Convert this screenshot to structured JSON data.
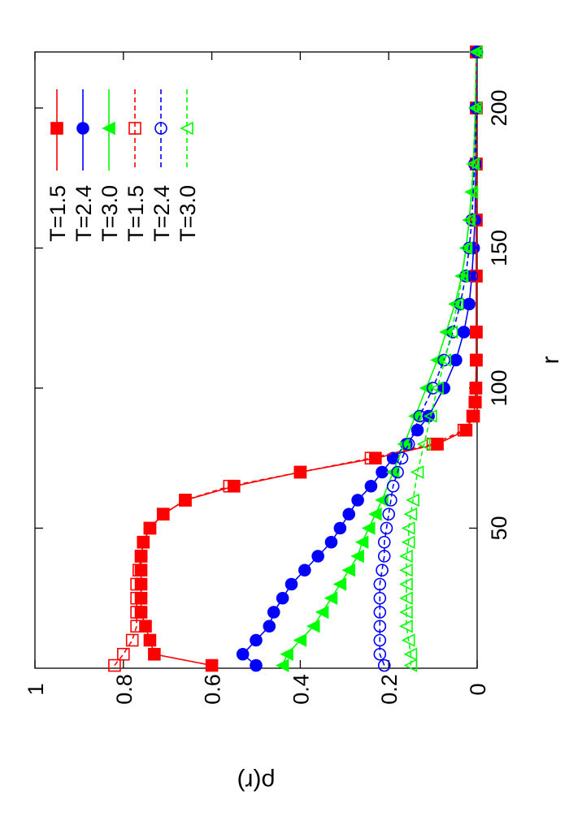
{
  "chart_data": {
    "type": "line",
    "xlabel": "r",
    "ylabel": "ρ(r)",
    "xlim": [
      0,
      220
    ],
    "ylim": [
      0,
      1
    ],
    "x_ticks": [
      50,
      100,
      150,
      200
    ],
    "y_ticks": [
      0,
      0.2,
      0.4,
      0.6,
      0.8,
      1
    ],
    "rotated": "90deg clockwise",
    "legend_position": "top-right",
    "series": [
      {
        "name": "T=1.5",
        "color": "#ff0000",
        "marker": "filled-square",
        "dash": "solid",
        "x": [
          1,
          5,
          10,
          15,
          20,
          25,
          30,
          35,
          40,
          45,
          50,
          55,
          60,
          65,
          70,
          75,
          80,
          85,
          90,
          95,
          100,
          110,
          120,
          140,
          160,
          180,
          200,
          220
        ],
        "y": [
          0.6,
          0.73,
          0.74,
          0.75,
          0.76,
          0.76,
          0.76,
          0.76,
          0.76,
          0.755,
          0.74,
          0.71,
          0.66,
          0.55,
          0.4,
          0.23,
          0.09,
          0.025,
          0.008,
          0.004,
          0.003,
          0.002,
          0.002,
          0.002,
          0.002,
          0.002,
          0.002,
          0.002
        ]
      },
      {
        "name": "T=2.4",
        "color": "#0000ff",
        "marker": "filled-circle",
        "dash": "solid",
        "x": [
          1,
          5,
          10,
          15,
          20,
          25,
          30,
          35,
          40,
          45,
          50,
          55,
          60,
          65,
          70,
          75,
          80,
          85,
          90,
          100,
          110,
          120,
          130,
          140,
          150,
          160,
          180,
          200,
          220
        ],
        "y": [
          0.5,
          0.53,
          0.5,
          0.47,
          0.46,
          0.44,
          0.42,
          0.39,
          0.36,
          0.33,
          0.31,
          0.29,
          0.27,
          0.24,
          0.215,
          0.19,
          0.16,
          0.135,
          0.11,
          0.075,
          0.048,
          0.03,
          0.018,
          0.012,
          0.008,
          0.005,
          0.003,
          0.002,
          0.001
        ]
      },
      {
        "name": "T=3.0",
        "color": "#00ff00",
        "marker": "filled-triangle",
        "dash": "solid",
        "x": [
          1,
          5,
          10,
          15,
          20,
          25,
          30,
          35,
          40,
          45,
          50,
          55,
          60,
          70,
          80,
          90,
          100,
          110,
          120,
          130,
          140,
          150,
          160,
          170,
          180,
          200,
          220
        ],
        "y": [
          0.44,
          0.43,
          0.4,
          0.37,
          0.35,
          0.33,
          0.31,
          0.29,
          0.27,
          0.26,
          0.245,
          0.23,
          0.215,
          0.19,
          0.165,
          0.14,
          0.115,
          0.09,
          0.07,
          0.05,
          0.035,
          0.025,
          0.018,
          0.012,
          0.008,
          0.004,
          0.002
        ]
      },
      {
        "name": "T=1.5",
        "color": "#ff0000",
        "marker": "open-square",
        "dash": "dashed",
        "x": [
          1,
          5,
          10,
          15,
          20,
          25,
          30,
          35,
          40,
          45,
          50,
          55,
          60,
          65,
          70,
          75,
          80,
          85,
          90,
          95,
          100,
          110,
          120,
          140,
          160,
          180,
          200,
          220
        ],
        "y": [
          0.82,
          0.8,
          0.78,
          0.77,
          0.77,
          0.77,
          0.77,
          0.765,
          0.76,
          0.755,
          0.74,
          0.71,
          0.66,
          0.56,
          0.4,
          0.24,
          0.1,
          0.03,
          0.01,
          0.005,
          0.003,
          0.002,
          0.002,
          0.002,
          0.002,
          0.002,
          0.002,
          0.002
        ]
      },
      {
        "name": "T=2.4",
        "color": "#0000ff",
        "marker": "open-circle",
        "dash": "dashed",
        "x": [
          1,
          5,
          10,
          15,
          20,
          25,
          30,
          35,
          40,
          45,
          50,
          55,
          60,
          65,
          70,
          75,
          80,
          90,
          100,
          110,
          120,
          130,
          140,
          150,
          160,
          180,
          200,
          220
        ],
        "y": [
          0.21,
          0.22,
          0.22,
          0.22,
          0.22,
          0.22,
          0.22,
          0.215,
          0.21,
          0.21,
          0.205,
          0.2,
          0.195,
          0.19,
          0.18,
          0.17,
          0.155,
          0.13,
          0.1,
          0.075,
          0.055,
          0.038,
          0.026,
          0.018,
          0.012,
          0.006,
          0.003,
          0.001
        ]
      },
      {
        "name": "T=3.0",
        "color": "#00ff00",
        "marker": "open-triangle",
        "dash": "dashed",
        "x": [
          1,
          5,
          10,
          15,
          20,
          25,
          30,
          35,
          40,
          45,
          50,
          55,
          60,
          70,
          80,
          90,
          100,
          110,
          120,
          130,
          140,
          150,
          160,
          170,
          180,
          200,
          220
        ],
        "y": [
          0.15,
          0.15,
          0.155,
          0.16,
          0.16,
          0.16,
          0.16,
          0.16,
          0.16,
          0.155,
          0.155,
          0.15,
          0.145,
          0.135,
          0.12,
          0.105,
          0.09,
          0.073,
          0.058,
          0.045,
          0.034,
          0.025,
          0.018,
          0.013,
          0.009,
          0.004,
          0.002
        ]
      }
    ]
  }
}
